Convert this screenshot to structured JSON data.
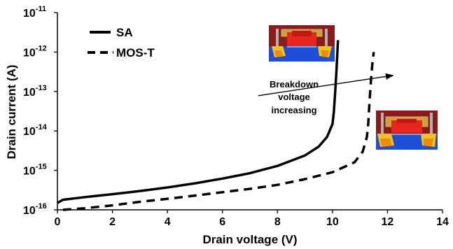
{
  "chart_data": {
    "type": "line",
    "xlabel": "Drain voltage (V)",
    "ylabel": "Drain current (A)",
    "xlim": [
      0,
      14
    ],
    "ylim": [
      1e-16,
      1e-11
    ],
    "y_scale": "log",
    "grid": false,
    "legend_position": "top-left",
    "x_ticks": [
      "0",
      "2",
      "4",
      "6",
      "8",
      "10",
      "12",
      "14"
    ],
    "y_ticks": [
      {
        "base": "10",
        "exp": "-16"
      },
      {
        "base": "10",
        "exp": "-15"
      },
      {
        "base": "10",
        "exp": "-14"
      },
      {
        "base": "10",
        "exp": "-13"
      },
      {
        "base": "10",
        "exp": "-12"
      },
      {
        "base": "10",
        "exp": "-11"
      }
    ],
    "series": [
      {
        "name": "SA",
        "style": "solid",
        "color": "#000000",
        "x": [
          0,
          0.2,
          1,
          2,
          3,
          4,
          5,
          6,
          7,
          8,
          9,
          9.5,
          9.8,
          10.0,
          10.05,
          10.1,
          10.15,
          10.2
        ],
        "y": [
          1.5e-16,
          1.8e-16,
          2.1e-16,
          2.5e-16,
          3e-16,
          3.7e-16,
          4.7e-16,
          6.2e-16,
          8.5e-16,
          1.3e-15,
          2.4e-15,
          4e-15,
          7e-15,
          1.5e-14,
          3e-14,
          1e-13,
          4e-13,
          2e-12
        ]
      },
      {
        "name": "MOS-T",
        "style": "dashed",
        "color": "#000000",
        "x": [
          0.2,
          1,
          2,
          3,
          4,
          5,
          6,
          7,
          8,
          9,
          10,
          10.8,
          11.1,
          11.25,
          11.3,
          11.35,
          11.4,
          11.45,
          11.5
        ],
        "y": [
          1e-16,
          1.1e-16,
          1.3e-16,
          1.6e-16,
          1.9e-16,
          2.3e-16,
          2.8e-16,
          3.4e-16,
          4.3e-16,
          6e-16,
          9e-16,
          1.6e-15,
          3e-15,
          7e-15,
          1.5e-14,
          6e-14,
          2e-13,
          5e-13,
          1e-12
        ]
      }
    ],
    "annotation": {
      "lines": [
        "Breakdown",
        "voltage",
        "increasing"
      ],
      "arrow_from": [
        7.3,
        1e-13
      ],
      "arrow_to": [
        12.2,
        2e-13
      ]
    },
    "insets": [
      {
        "name": "sa-device-cross-section",
        "anchor": "left-of-sa-peak"
      },
      {
        "name": "most-device-cross-section",
        "anchor": "right-of-most-knee"
      }
    ]
  }
}
